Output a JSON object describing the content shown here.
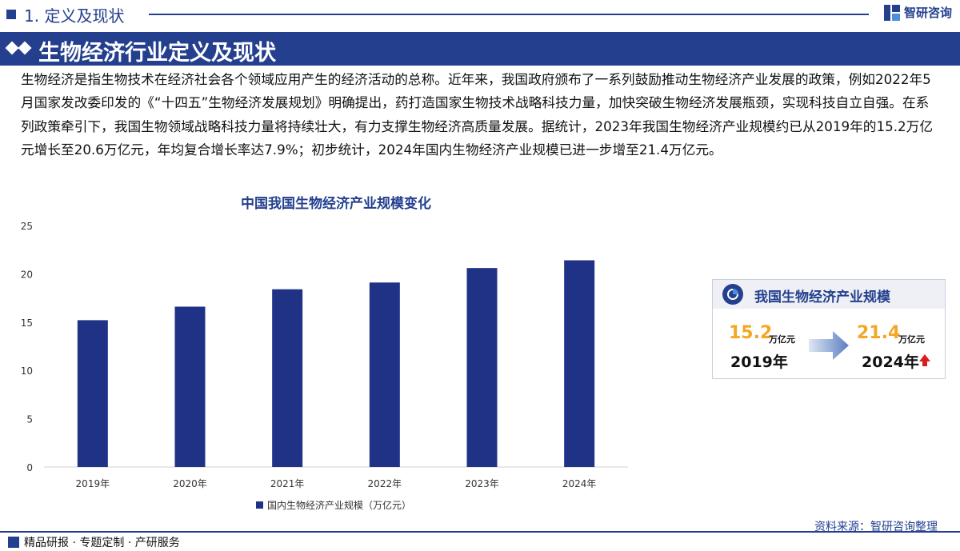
{
  "header": {
    "section_title": "1. 定义及现状",
    "logo_text": "智研咨询"
  },
  "banner": {
    "title": "生物经济行业定义及现状"
  },
  "paragraph": "生物经济是指生物技术在经济社会各个领域应用产生的经济活动的总称。近年来，我国政府颁布了一系列鼓励推动生物经济产业发展的政策，例如2022年5月国家发改委印发的《“十四五”生物经济发展规划》明确提出，药打造国家生物技术战略科技力量，加快突破生物经济发展瓶颈，实现科技自立自强。在系列政策牵引下，我国生物领域战略科技力量将持续壮大，有力支撑生物经济高质量发展。据统计，2023年我国生物经济产业规模约已从2019年的15.2万亿元增长至20.6万亿元，年均复合增长率达7.9%；初步统计，2024年国内生物经济产业规模已进一步增至21.4万亿元。",
  "chart_data": {
    "type": "bar",
    "title": "中国我国生物经济产业规模变化",
    "categories": [
      "2019年",
      "2020年",
      "2021年",
      "2022年",
      "2023年",
      "2024年"
    ],
    "series": [
      {
        "name": "国内生物经济产业规模（万亿元）",
        "values": [
          15.2,
          16.6,
          18.4,
          19.1,
          20.6,
          21.4
        ]
      }
    ],
    "xlabel": "",
    "ylabel": "",
    "ylim": [
      0,
      25
    ],
    "yticks": [
      0,
      5,
      10,
      15,
      20,
      25
    ],
    "grid": false,
    "legend": "bottom-center",
    "bar_color": "#1f3286"
  },
  "card": {
    "title": "我国生物经济产业规模",
    "from_value": "15.2",
    "from_unit": "万亿元",
    "from_year": "2019年",
    "to_value": "21.4",
    "to_unit": "万亿元",
    "to_year": "2024年"
  },
  "footer": {
    "left_text": "精品研报 · 专题定制 · 产研服务",
    "source": "资料来源：智研咨询整理"
  },
  "colors": {
    "brand": "#233f8e",
    "accent_number": "#f5a623",
    "arrow_red": "#d81e1e"
  }
}
